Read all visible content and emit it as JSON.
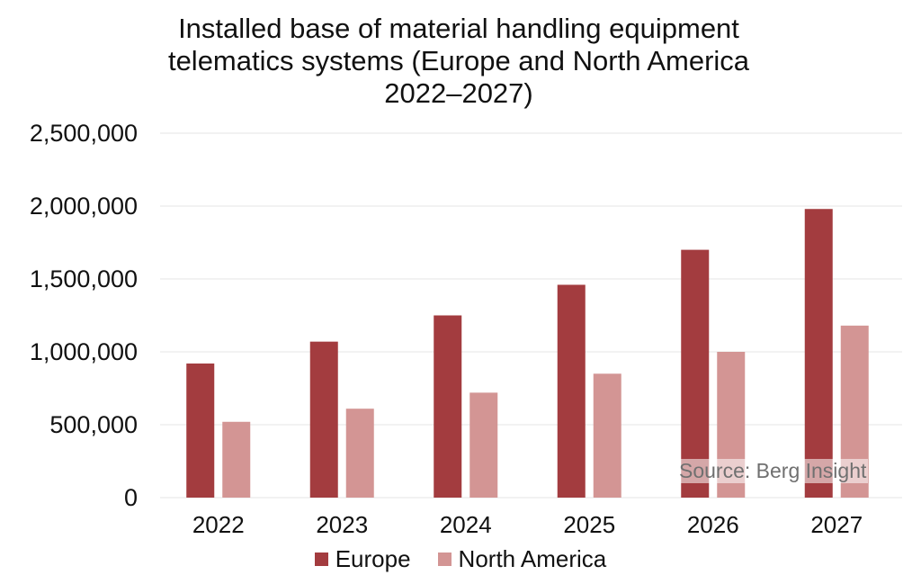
{
  "title_lines": [
    "Installed base of material handling equipment",
    "telematics systems (Europe and North America",
    "2022–2027)"
  ],
  "source_text": "Source: Berg Insight",
  "colors": {
    "europe": "#a33c3f",
    "north_america": "#d39594",
    "grid": "#e6e6e6"
  },
  "chart_data": {
    "type": "bar",
    "title": "Installed base of material handling equipment telematics systems (Europe and North America 2022–2027)",
    "categories": [
      "2022",
      "2023",
      "2024",
      "2025",
      "2026",
      "2027"
    ],
    "series": [
      {
        "name": "Europe",
        "values": [
          920000,
          1070000,
          1250000,
          1460000,
          1700000,
          1980000
        ]
      },
      {
        "name": "North America",
        "values": [
          520000,
          610000,
          720000,
          850000,
          1000000,
          1180000
        ]
      }
    ],
    "ylim": [
      0,
      2500000
    ],
    "yticks": [
      0,
      500000,
      1000000,
      1500000,
      2000000,
      2500000
    ],
    "ytick_labels": [
      "0",
      "500,000",
      "1,000,000",
      "1,500,000",
      "2,000,000",
      "2,500,000"
    ],
    "xlabel": "",
    "ylabel": "",
    "grid": true,
    "legend_position": "bottom"
  }
}
